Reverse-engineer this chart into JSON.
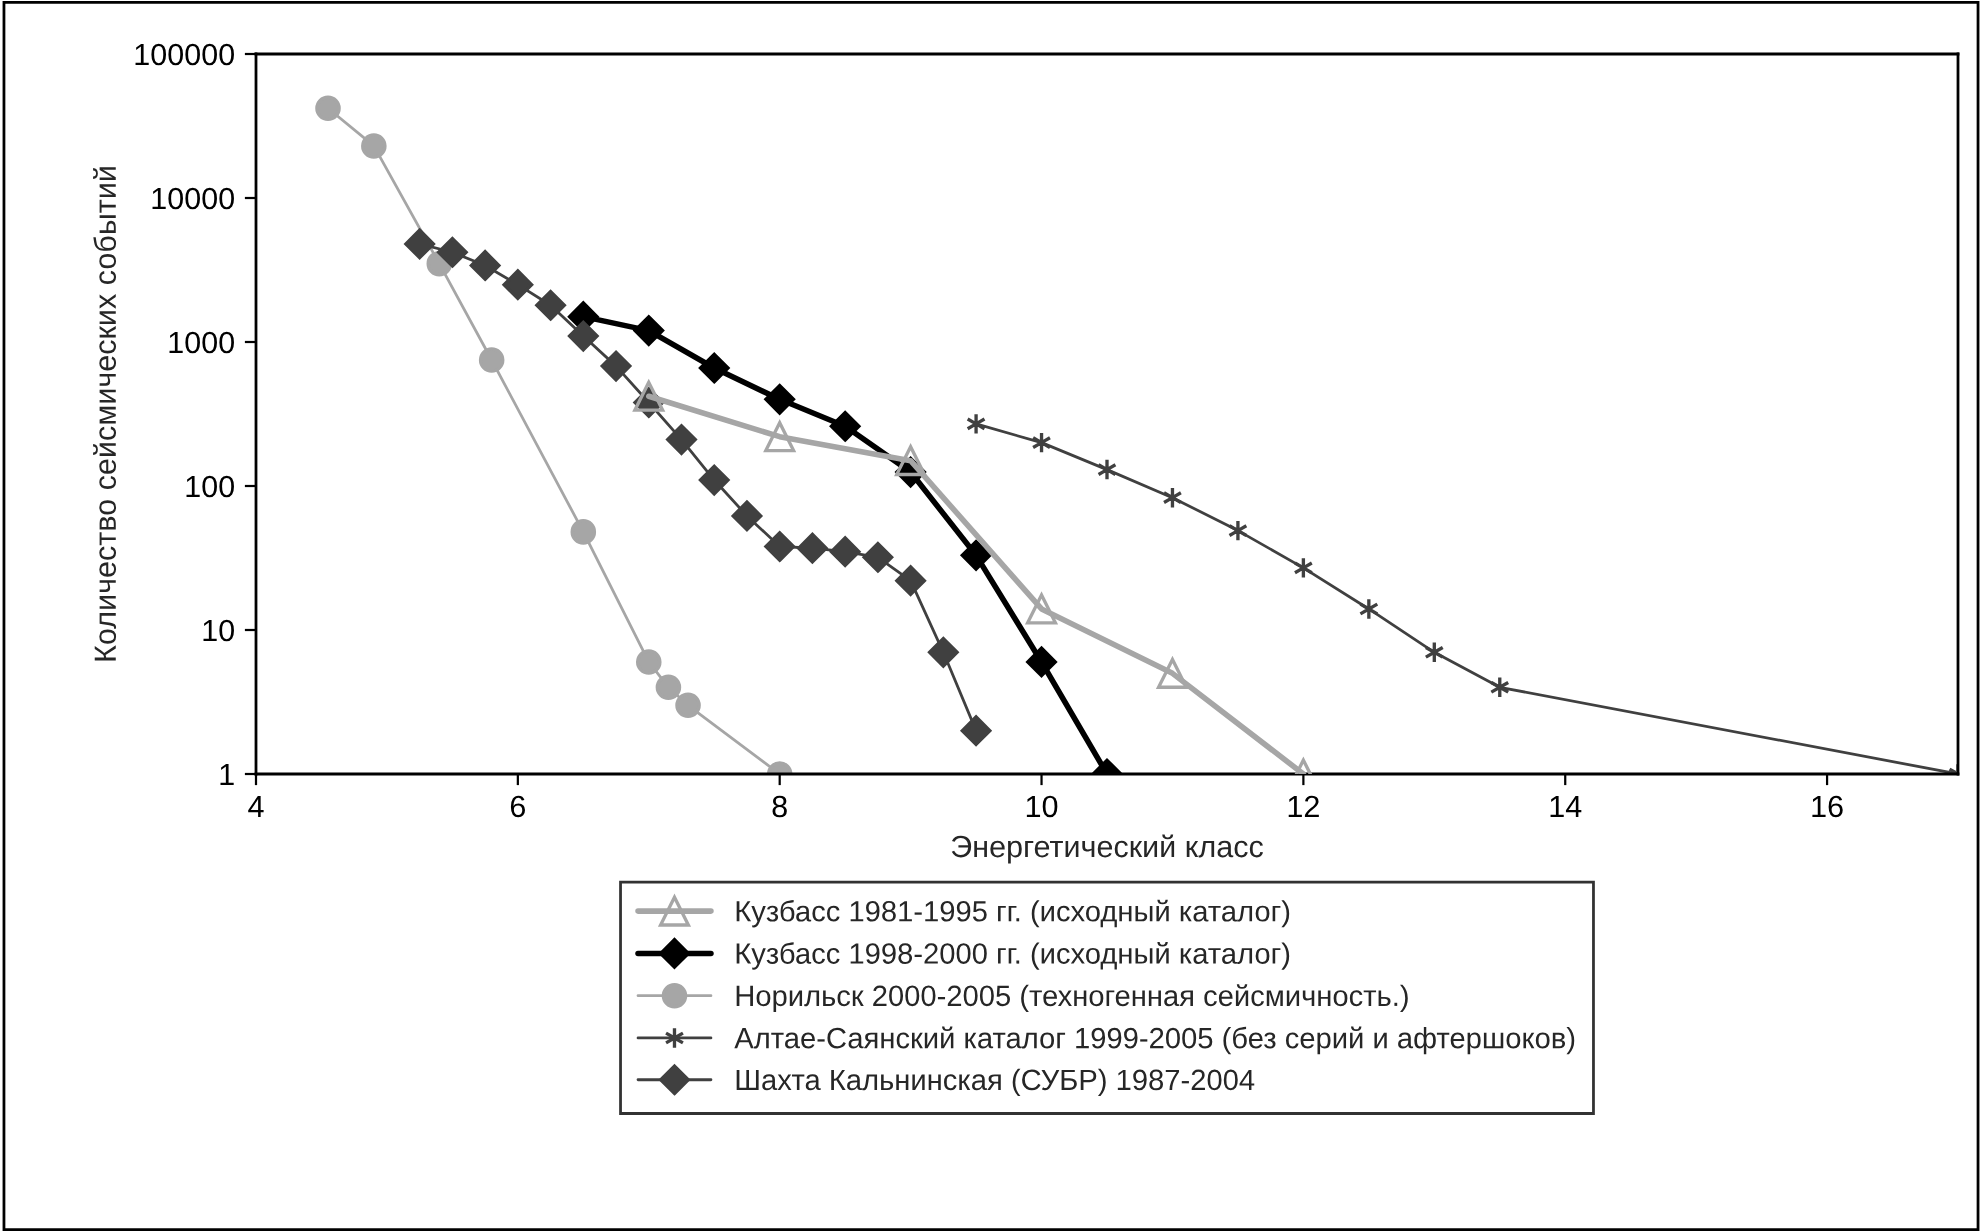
{
  "chart_data": {
    "type": "line",
    "xlabel": "Энергетический класс",
    "ylabel": "Количество сейсмических событий",
    "log": "y",
    "xlim": [
      4,
      17
    ],
    "xticks": [
      4,
      6,
      8,
      10,
      12,
      14,
      16
    ],
    "ylim": [
      1,
      100000
    ],
    "yticks": [
      1,
      10,
      100,
      1000,
      10000,
      100000
    ],
    "grid": false,
    "legend": "bottom",
    "series": [
      {
        "name": "Кузбасс 1981-1995 гг. (исходный каталог)",
        "color": "#a6a6a6",
        "marker": "triangle",
        "x": [
          7,
          8,
          9,
          10,
          11,
          12
        ],
        "values": [
          420,
          220,
          150,
          14,
          5,
          1
        ]
      },
      {
        "name": "Кузбасс 1998-2000 гг. (исходный каталог)",
        "color": "#000000",
        "marker": "diamond",
        "x": [
          6.5,
          7,
          7.5,
          8,
          8.5,
          9,
          9.5,
          10,
          10.5
        ],
        "values": [
          1500,
          1200,
          660,
          400,
          260,
          125,
          33,
          6,
          1
        ]
      },
      {
        "name": "Норильск 2000-2005 (техногенная сейсмичность.)",
        "color": "#a6a6a6",
        "marker": "circle",
        "x": [
          4.55,
          4.9,
          5.4,
          5.8,
          6.5,
          7.0,
          7.15,
          7.3,
          8
        ],
        "values": [
          42000,
          23000,
          3500,
          750,
          48,
          6,
          4,
          3,
          1
        ]
      },
      {
        "name": "Алтае-Саянский каталог 1999-2005 (без серий и афтершоков)",
        "color": "#404040",
        "marker": "cross",
        "x": [
          9.5,
          10,
          10.5,
          11,
          11.5,
          12,
          12.5,
          13,
          13.5,
          17
        ],
        "values": [
          270,
          200,
          130,
          83,
          49,
          27,
          14,
          7,
          4,
          1
        ]
      },
      {
        "name": "Шахта Кальнинская (СУБР) 1987-2004",
        "color": "#404040",
        "marker": "diamond",
        "x": [
          5.25,
          5.5,
          5.75,
          6,
          6.25,
          6.5,
          6.75,
          7,
          7.25,
          7.5,
          7.75,
          8,
          8.25,
          8.5,
          8.75,
          9,
          9.25,
          9.5
        ],
        "values": [
          4800,
          4200,
          3400,
          2500,
          1800,
          1100,
          680,
          380,
          210,
          110,
          62,
          38,
          37,
          35,
          32,
          22,
          7,
          2
        ]
      }
    ]
  }
}
